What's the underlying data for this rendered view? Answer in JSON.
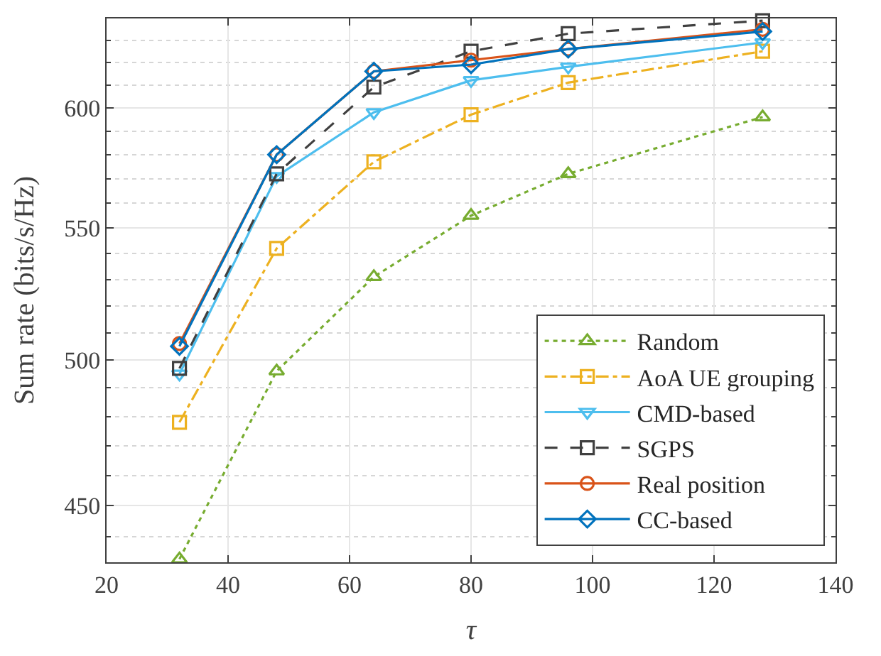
{
  "chart_data": {
    "type": "line",
    "xlabel": "τ",
    "ylabel": "Sum rate (bits/s/Hz)",
    "x": [
      32,
      48,
      64,
      80,
      96,
      128
    ],
    "xlim": [
      20,
      140
    ],
    "xticks": [
      20,
      40,
      60,
      80,
      100,
      120,
      140
    ],
    "log": "y",
    "ylim": [
      432,
      640
    ],
    "yticks": [
      {
        "value": 440,
        "label": null
      },
      450,
      {
        "value": 460,
        "label": null
      },
      {
        "value": 470,
        "label": null
      },
      {
        "value": 480,
        "label": null
      },
      {
        "value": 490,
        "label": null
      },
      500,
      {
        "value": 510,
        "label": null
      },
      {
        "value": 520,
        "label": null
      },
      {
        "value": 530,
        "label": null
      },
      {
        "value": 540,
        "label": null
      },
      550,
      {
        "value": 560,
        "label": null
      },
      {
        "value": 570,
        "label": null
      },
      {
        "value": 580,
        "label": null
      },
      {
        "value": 590,
        "label": null
      },
      600,
      {
        "value": 610,
        "label": null
      },
      {
        "value": 620,
        "label": null
      },
      {
        "value": 630,
        "label": null
      }
    ],
    "grid": true,
    "legend": "bottom right",
    "series": [
      {
        "name": "Random",
        "color": "#77ac30",
        "marker": "triangle",
        "line_style": "dotted",
        "values": [
          433,
          496,
          531,
          555,
          572,
          596
        ]
      },
      {
        "name": "AoA UE grouping",
        "color": "#edb120",
        "marker": "square",
        "line_style": "dashdot",
        "values": [
          478,
          542,
          577,
          597,
          611,
          625
        ]
      },
      {
        "name": "CMD-based",
        "color": "#4dbeee",
        "marker": "triangle-down",
        "line_style": "solid",
        "values": [
          495,
          571,
          598,
          612,
          618,
          629
        ]
      },
      {
        "name": "SGPS",
        "color": "#404040",
        "marker": "square",
        "line_style": "dashed",
        "values": [
          497,
          572,
          609,
          625,
          633,
          639
        ]
      },
      {
        "name": "Real position",
        "color": "#d95319",
        "marker": "circle",
        "line_style": "solid",
        "values": [
          506,
          580,
          616,
          621,
          626,
          635
        ]
      },
      {
        "name": "CC-based",
        "color": "#0072bd",
        "marker": "diamond",
        "line_style": "solid",
        "values": [
          505,
          580,
          616,
          619,
          626,
          634
        ]
      }
    ]
  }
}
